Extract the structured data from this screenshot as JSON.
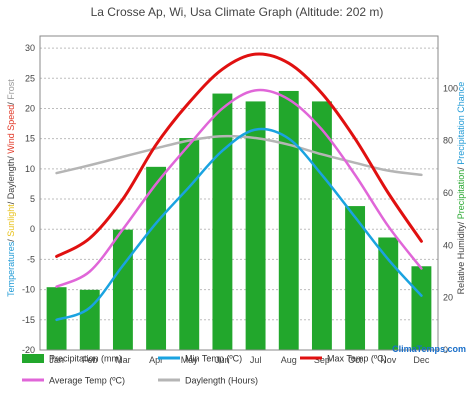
{
  "chart_data": {
    "type": "bar",
    "title": "La Crosse Ap, Wi,  Usa Climate Graph (Altitude: 202 m)",
    "categories": [
      "Jan",
      "Feb",
      "Mar",
      "Apr",
      "May",
      "Jun",
      "Jul",
      "Aug",
      "Sep",
      "Oct",
      "Nov",
      "Dec"
    ],
    "left_axis": {
      "label_parts": [
        {
          "text": "Temperatures",
          "color": "#1f9ad6"
        },
        {
          "text": "/ ",
          "color": "#444444"
        },
        {
          "text": "Sunlight",
          "color": "#e8c21c"
        },
        {
          "text": "/ Daylength/ ",
          "color": "#444444"
        },
        {
          "text": "Wind Speed",
          "color": "#e23b2a"
        },
        {
          "text": "/ ",
          "color": "#444444"
        },
        {
          "text": "Frost",
          "color": "#9a9a9a"
        }
      ],
      "ylim": [
        -20,
        32
      ],
      "ticks": [
        -20,
        -15,
        -10,
        -5,
        0,
        5,
        10,
        15,
        20,
        25,
        30
      ]
    },
    "right_axis": {
      "label_parts": [
        {
          "text": "Relative Humidity/ ",
          "color": "#444444"
        },
        {
          "text": "Precipitation",
          "color": "#2aa832"
        },
        {
          "text": "/ ",
          "color": "#444444"
        },
        {
          "text": "Precipitation Chance",
          "color": "#1f9ad6"
        }
      ],
      "ylim": [
        0,
        120
      ],
      "ticks": [
        0,
        20,
        40,
        60,
        80,
        100
      ]
    },
    "series": [
      {
        "name": "Precipitation (mm)",
        "kind": "bar",
        "axis": "right",
        "color": "#22a72c",
        "values": [
          24,
          23,
          46,
          70,
          81,
          98,
          95,
          99,
          95,
          55,
          43,
          32
        ]
      },
      {
        "name": "Min Temp (ºC)",
        "kind": "line",
        "axis": "left",
        "color": "#1aa3e0",
        "values": [
          -15,
          -13,
          -6,
          1,
          7,
          13,
          16.5,
          15,
          9,
          2,
          -5,
          -11
        ]
      },
      {
        "name": "Max Temp (ºC)",
        "kind": "line",
        "axis": "left",
        "color": "#e01010",
        "values": [
          -4.5,
          -1.5,
          5,
          14,
          21,
          26.5,
          29,
          27.5,
          22.5,
          15,
          6,
          -2
        ]
      },
      {
        "name": "Average Temp (ºC)",
        "kind": "line",
        "axis": "left",
        "color": "#e066d8",
        "values": [
          -9.5,
          -7,
          0,
          7.5,
          14,
          20,
          23,
          21.5,
          16.5,
          9,
          0.5,
          -6.5
        ]
      },
      {
        "name": "Daylength (Hours)",
        "kind": "line",
        "axis": "left",
        "color": "#b5b5b5",
        "values": [
          9.3,
          10.6,
          12,
          13.4,
          14.7,
          15.4,
          15.1,
          14,
          12.4,
          11,
          9.7,
          9
        ]
      }
    ],
    "legend": [
      {
        "label": "Precipitation (mm)",
        "color": "#22a72c",
        "style": "bar"
      },
      {
        "label": "Min Temp (ºC)",
        "color": "#1aa3e0",
        "style": "line"
      },
      {
        "label": "Max Temp (ºC)",
        "color": "#e01010",
        "style": "line"
      },
      {
        "label": "Average Temp (ºC)",
        "color": "#e066d8",
        "style": "line"
      },
      {
        "label": "Daylength (Hours)",
        "color": "#b5b5b5",
        "style": "line"
      }
    ],
    "legend_placement": "bottom",
    "grid": true,
    "watermark": "ClimaTemps.com"
  }
}
